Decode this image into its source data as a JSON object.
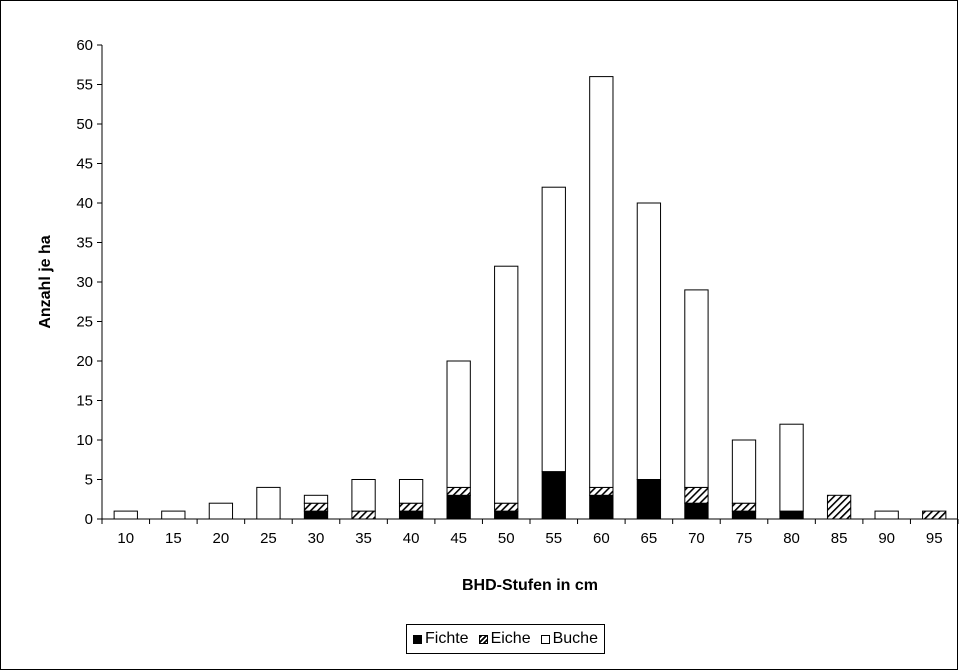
{
  "chart_data": {
    "type": "bar",
    "stacked": true,
    "xlabel": "BHD-Stufen in cm",
    "ylabel": "Anzahl je ha",
    "ylim": [
      0,
      60
    ],
    "yticks": [
      "0",
      "5",
      "10",
      "15",
      "20",
      "25",
      "30",
      "35",
      "40",
      "45",
      "50",
      "55",
      "60"
    ],
    "categories": [
      "10",
      "15",
      "20",
      "25",
      "30",
      "35",
      "40",
      "45",
      "50",
      "55",
      "60",
      "65",
      "70",
      "75",
      "80",
      "85",
      "90",
      "95"
    ],
    "series": [
      {
        "name": "Fichte",
        "fill": "solid-black",
        "values": [
          0,
          0,
          0,
          0,
          1,
          0,
          1,
          3,
          1,
          6,
          3,
          5,
          2,
          1,
          1,
          0,
          0,
          0
        ]
      },
      {
        "name": "Eiche",
        "fill": "diagonal-hatch",
        "values": [
          0,
          0,
          0,
          0,
          1,
          1,
          1,
          1,
          1,
          0,
          1,
          0,
          2,
          1,
          0,
          3,
          0,
          1
        ]
      },
      {
        "name": "Buche",
        "fill": "white",
        "values": [
          1,
          1,
          2,
          4,
          1,
          4,
          3,
          16,
          30,
          36,
          52,
          35,
          25,
          8,
          11,
          0,
          1,
          0
        ]
      }
    ],
    "legend_position": "bottom",
    "grid": false
  }
}
